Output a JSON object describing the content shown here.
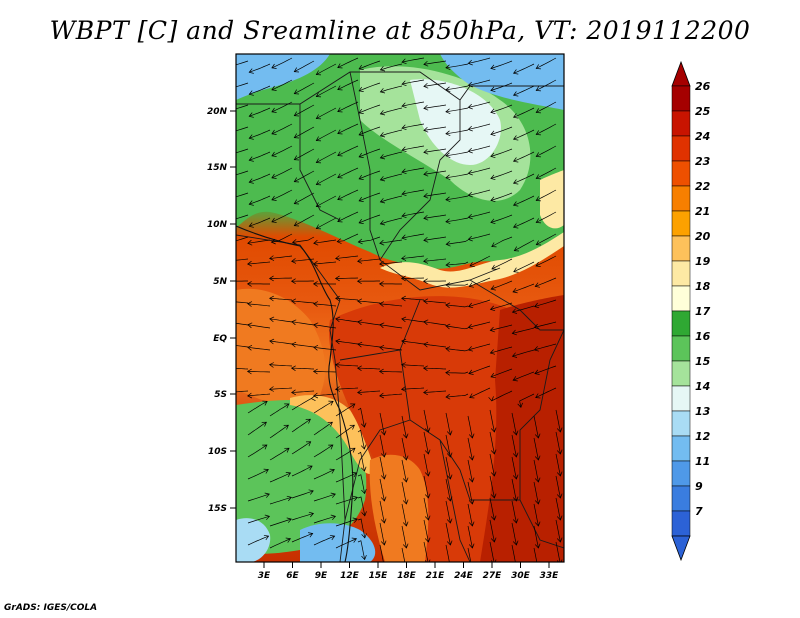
{
  "title": "WBPT [C] and Sreamline at 850hPa, VT: 2019112200",
  "footer": "GrADS: IGES/COLA",
  "map": {
    "lat_labels": [
      "20N",
      "15N",
      "10N",
      "5N",
      "EQ",
      "5S",
      "10S",
      "15S"
    ],
    "lon_labels": [
      "3E",
      "6E",
      "9E",
      "12E",
      "15E",
      "18E",
      "21E",
      "24E",
      "27E",
      "30E",
      "33E"
    ]
  },
  "colorbar": {
    "labels": [
      "26",
      "25",
      "24",
      "23",
      "22",
      "21",
      "20",
      "19",
      "18",
      "17",
      "16",
      "15",
      "14",
      "13",
      "12",
      "11",
      "9",
      "7"
    ],
    "colors": [
      "#a50000",
      "#c81400",
      "#e03200",
      "#ee5000",
      "#f77f00",
      "#fca100",
      "#fdc15b",
      "#fde9a4",
      "#ffffd9",
      "#2fa833",
      "#5cc45a",
      "#a5e39b",
      "#e6f7f5",
      "#a9dcf4",
      "#73bcf0",
      "#4f99e8",
      "#3a7ddf",
      "#2c62d6"
    ],
    "cap_top_color": "#a50000",
    "cap_bottom_color": "#2c62d6"
  }
}
